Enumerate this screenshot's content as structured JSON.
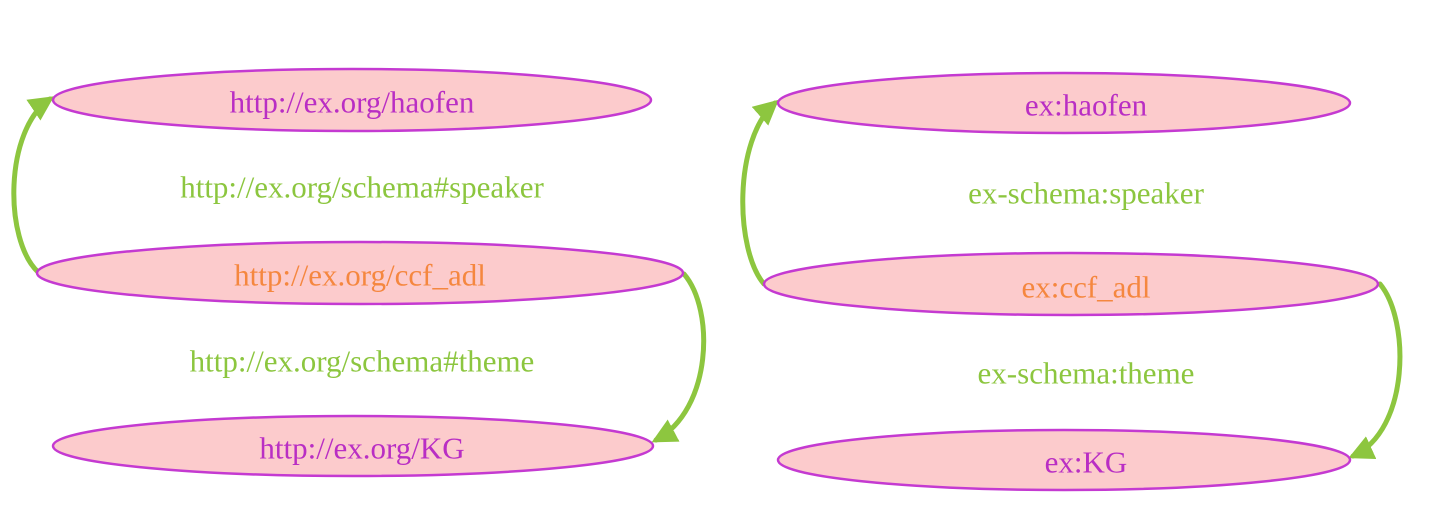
{
  "colors": {
    "node_fill": "#fccbcc",
    "node_border": "#c43ad1",
    "node_text": "#b92ec4",
    "subject_text": "#f5873f",
    "edge": "#8dc63f",
    "edge_label": "#8cc63f"
  },
  "left_graph": {
    "nodes": {
      "haofen": "http://ex.org/haofen",
      "ccf_adl": "http://ex.org/ccf_adl",
      "kg": "http://ex.org/KG"
    },
    "edges": {
      "speaker": "http://ex.org/schema#speaker",
      "theme": "http://ex.org/schema#theme"
    }
  },
  "right_graph": {
    "nodes": {
      "haofen": "ex:haofen",
      "ccf_adl": "ex:ccf_adl",
      "kg": "ex:KG"
    },
    "edges": {
      "speaker": "ex-schema:speaker",
      "theme": "ex-schema:theme"
    }
  }
}
